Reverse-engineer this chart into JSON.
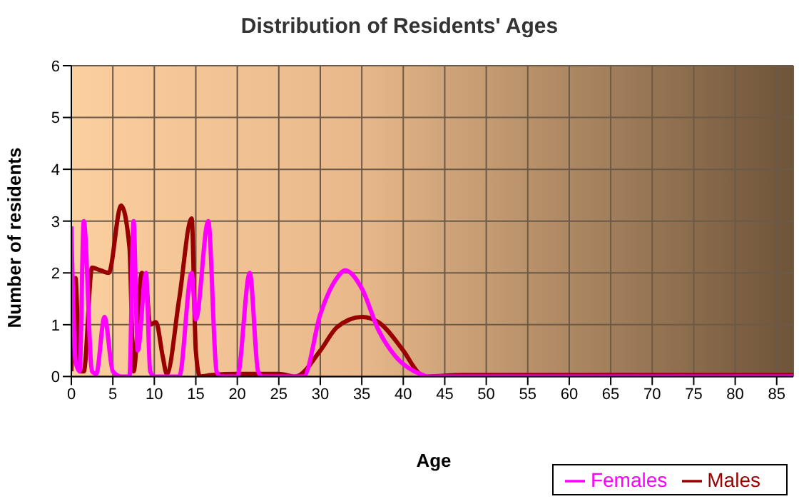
{
  "chart_data": {
    "type": "line",
    "title": "Distribution of Residents' Ages",
    "xlabel": "Age",
    "ylabel": "Number of residents",
    "xlim": [
      0,
      87
    ],
    "xticks": [
      0,
      5,
      10,
      15,
      20,
      25,
      30,
      35,
      40,
      45,
      50,
      55,
      60,
      65,
      70,
      75,
      80,
      85
    ],
    "ylim": [
      0,
      6
    ],
    "yticks": [
      0,
      1,
      2,
      3,
      4,
      5,
      6
    ],
    "grid": true,
    "legend": "bottom right",
    "marker": "none",
    "line_style": "solid",
    "series": [
      {
        "name": "Males",
        "color": "#990000",
        "x": [
          0,
          0.5,
          1,
          1.5,
          2.5,
          3.5,
          4.5,
          6,
          7,
          7.5,
          8.5,
          9,
          9.5,
          10.2,
          11,
          11.5,
          13,
          14.5,
          15,
          15.5,
          17,
          20,
          25,
          27,
          30,
          32,
          35,
          37,
          40,
          42,
          43,
          47,
          87
        ],
        "values": [
          0.1,
          1.9,
          0.1,
          0.1,
          2.1,
          2.05,
          2,
          3.3,
          2.5,
          0.1,
          2,
          1.8,
          1,
          1.05,
          0.4,
          0.05,
          1.5,
          3.05,
          0.5,
          0,
          0.03,
          0.05,
          0.05,
          0,
          0.5,
          0.95,
          1.15,
          1.05,
          0.5,
          0.05,
          0,
          0.03,
          0.03
        ]
      },
      {
        "name": "Females",
        "color": "#ff00ff",
        "x": [
          0,
          0.5,
          1,
          1.5,
          2.5,
          3,
          4,
          5,
          6,
          7,
          7.5,
          8,
          9,
          9.5,
          10,
          13,
          14.5,
          15,
          16.5,
          17.5,
          18,
          20,
          21.5,
          22.5,
          23,
          28,
          30,
          32,
          33,
          35,
          37,
          39,
          42,
          43,
          87
        ],
        "values": [
          2.9,
          0.3,
          0.1,
          3,
          0.1,
          0.05,
          1.15,
          0.1,
          0,
          0,
          3,
          0.5,
          2,
          0.1,
          0,
          0,
          2,
          1.1,
          3,
          0.1,
          0,
          0,
          2,
          0.1,
          0,
          0,
          1.2,
          1.9,
          2.05,
          1.7,
          0.9,
          0.4,
          0.05,
          0,
          0
        ]
      }
    ]
  }
}
